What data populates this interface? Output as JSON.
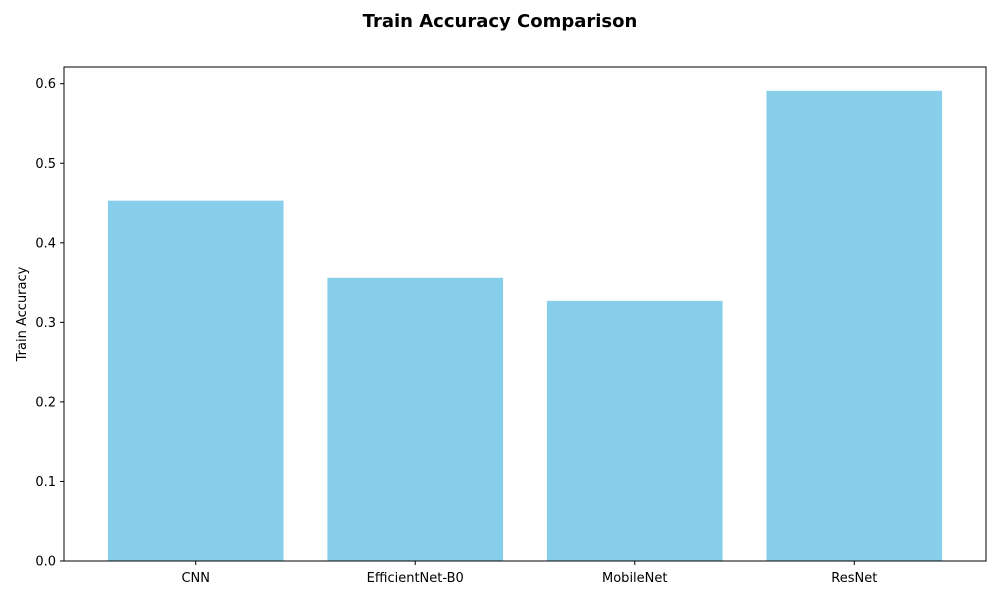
{
  "chart_data": {
    "type": "bar",
    "title": "Train Accuracy Comparison",
    "xlabel": "",
    "ylabel": "Train Accuracy",
    "categories": [
      "CNN",
      "EfficientNet-B0",
      "MobileNet",
      "ResNet"
    ],
    "values": [
      0.453,
      0.356,
      0.327,
      0.591
    ],
    "ylim": [
      0,
      0.621
    ],
    "yticks": [
      0.0,
      0.1,
      0.2,
      0.3,
      0.4,
      0.5,
      0.6
    ],
    "ytick_labels": [
      "0.0",
      "0.1",
      "0.2",
      "0.3",
      "0.4",
      "0.5",
      "0.6"
    ],
    "bar_color": "#87ceeb",
    "grid": false,
    "legend": "none"
  }
}
